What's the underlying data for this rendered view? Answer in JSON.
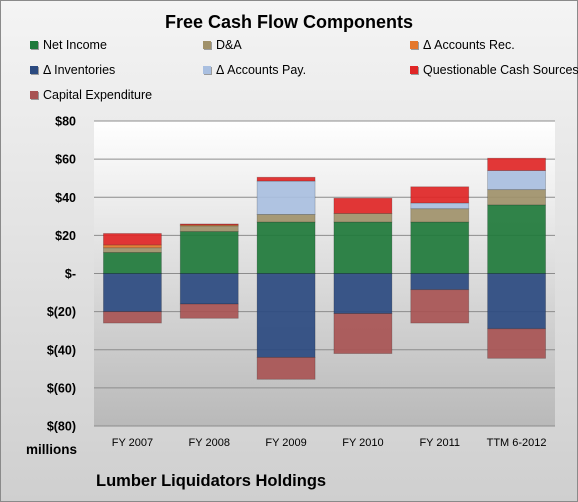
{
  "chart_data": {
    "type": "bar",
    "stacked": true,
    "title": "Free Cash Flow Components",
    "categories": [
      "FY 2007",
      "FY 2008",
      "FY 2009",
      "FY 2010",
      "FY 2011",
      "TTM 6-2012"
    ],
    "ylim": [
      -80,
      80
    ],
    "y_ticks": [
      "$80",
      "$60",
      "$40",
      "$20",
      "$-",
      "$(20)",
      "$(40)",
      "$(60)",
      "$(80)"
    ],
    "y_unit": "millions",
    "grid": true,
    "legend_position": "top",
    "series": [
      {
        "name": "Net Income",
        "color": "#1f7a3b",
        "values": [
          11,
          22,
          27,
          27,
          27,
          36
        ]
      },
      {
        "name": "D&A",
        "color": "#a0916a",
        "values": [
          2.5,
          3,
          4,
          4.5,
          7,
          8
        ]
      },
      {
        "name": "Δ Accounts Rec.",
        "color": "#e5772b",
        "values": [
          1.5,
          0.5,
          0,
          0,
          0,
          0
        ]
      },
      {
        "name": "Δ Inventories",
        "color": "#2b4a80",
        "values": [
          -20,
          -16,
          -44,
          -21,
          -8.5,
          -29
        ]
      },
      {
        "name": "Δ Accounts Pay.",
        "color": "#a9bfe0",
        "values": [
          0,
          0,
          17.5,
          0,
          3,
          10
        ]
      },
      {
        "name": "Questionable Cash Sources",
        "color": "#e02626",
        "values": [
          6,
          0.5,
          2,
          8,
          8.5,
          6.5
        ]
      },
      {
        "name": "Capital Expenditure",
        "color": "#a85454",
        "values": [
          -6,
          -7.5,
          -11.5,
          -21,
          -17.5,
          -15.5
        ]
      }
    ]
  },
  "footer": "Lumber Liquidators Holdings"
}
